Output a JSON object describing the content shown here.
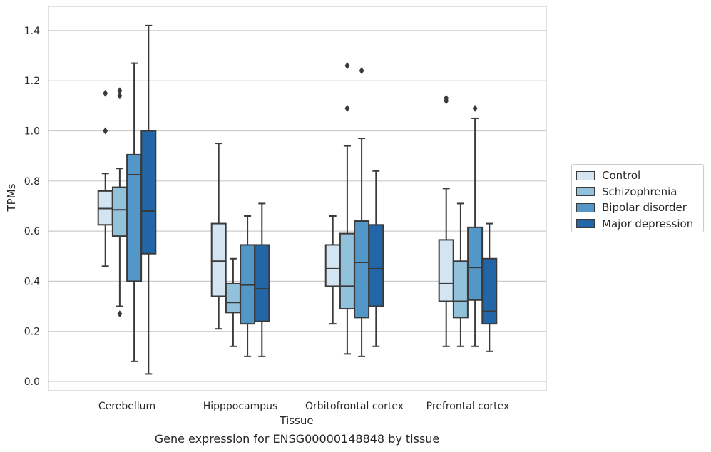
{
  "caption": "Gene expression for ENSG00000148848 by tissue",
  "chart_data": {
    "type": "box",
    "xlabel": "Tissue",
    "ylabel": "TPMs",
    "ylim": [
      -0.04,
      1.49
    ],
    "yticks": [
      "0.0",
      "0.2",
      "0.4",
      "0.6",
      "0.8",
      "1.0",
      "1.2",
      "1.4"
    ],
    "grid": true,
    "legend_position": "right",
    "categories": [
      "Cerebellum",
      "Hipppocampus",
      "Orbitofrontal cortex",
      "Prefrontal cortex"
    ],
    "series": [
      {
        "name": "Control",
        "color": "#d3e4f3",
        "boxes": [
          {
            "whislo": 0.46,
            "q1": 0.625,
            "med": 0.69,
            "q3": 0.76,
            "whishi": 0.83,
            "fliers": [
              1.0,
              1.15
            ]
          },
          {
            "whislo": 0.21,
            "q1": 0.34,
            "med": 0.48,
            "q3": 0.63,
            "whishi": 0.95,
            "fliers": []
          },
          {
            "whislo": 0.23,
            "q1": 0.38,
            "med": 0.45,
            "q3": 0.545,
            "whishi": 0.66,
            "fliers": []
          },
          {
            "whislo": 0.14,
            "q1": 0.32,
            "med": 0.39,
            "q3": 0.565,
            "whishi": 0.77,
            "fliers": [
              1.12,
              1.13
            ]
          }
        ]
      },
      {
        "name": "Schizophrenia",
        "color": "#92c1dc",
        "boxes": [
          {
            "whislo": 0.3,
            "q1": 0.58,
            "med": 0.685,
            "q3": 0.775,
            "whishi": 0.85,
            "fliers": [
              0.27,
              1.14,
              1.16
            ]
          },
          {
            "whislo": 0.14,
            "q1": 0.275,
            "med": 0.315,
            "q3": 0.39,
            "whishi": 0.49,
            "fliers": []
          },
          {
            "whislo": 0.11,
            "q1": 0.29,
            "med": 0.38,
            "q3": 0.59,
            "whishi": 0.94,
            "fliers": [
              1.09,
              1.26
            ]
          },
          {
            "whislo": 0.14,
            "q1": 0.255,
            "med": 0.32,
            "q3": 0.48,
            "whishi": 0.71,
            "fliers": []
          }
        ]
      },
      {
        "name": "Bipolar disorder",
        "color": "#5397c8",
        "boxes": [
          {
            "whislo": 0.08,
            "q1": 0.4,
            "med": 0.825,
            "q3": 0.905,
            "whishi": 1.27,
            "fliers": []
          },
          {
            "whislo": 0.1,
            "q1": 0.23,
            "med": 0.385,
            "q3": 0.545,
            "whishi": 0.66,
            "fliers": []
          },
          {
            "whislo": 0.1,
            "q1": 0.255,
            "med": 0.475,
            "q3": 0.64,
            "whishi": 0.97,
            "fliers": [
              1.24
            ]
          },
          {
            "whislo": 0.14,
            "q1": 0.325,
            "med": 0.455,
            "q3": 0.615,
            "whishi": 1.05,
            "fliers": [
              1.09
            ]
          }
        ]
      },
      {
        "name": "Major depression",
        "color": "#2266a8",
        "boxes": [
          {
            "whislo": 0.03,
            "q1": 0.51,
            "med": 0.68,
            "q3": 1.0,
            "whishi": 1.42,
            "fliers": []
          },
          {
            "whislo": 0.1,
            "q1": 0.24,
            "med": 0.37,
            "q3": 0.545,
            "whishi": 0.71,
            "fliers": []
          },
          {
            "whislo": 0.14,
            "q1": 0.3,
            "med": 0.45,
            "q3": 0.625,
            "whishi": 0.84,
            "fliers": []
          },
          {
            "whislo": 0.12,
            "q1": 0.23,
            "med": 0.28,
            "q3": 0.49,
            "whishi": 0.63,
            "fliers": []
          }
        ]
      }
    ]
  }
}
